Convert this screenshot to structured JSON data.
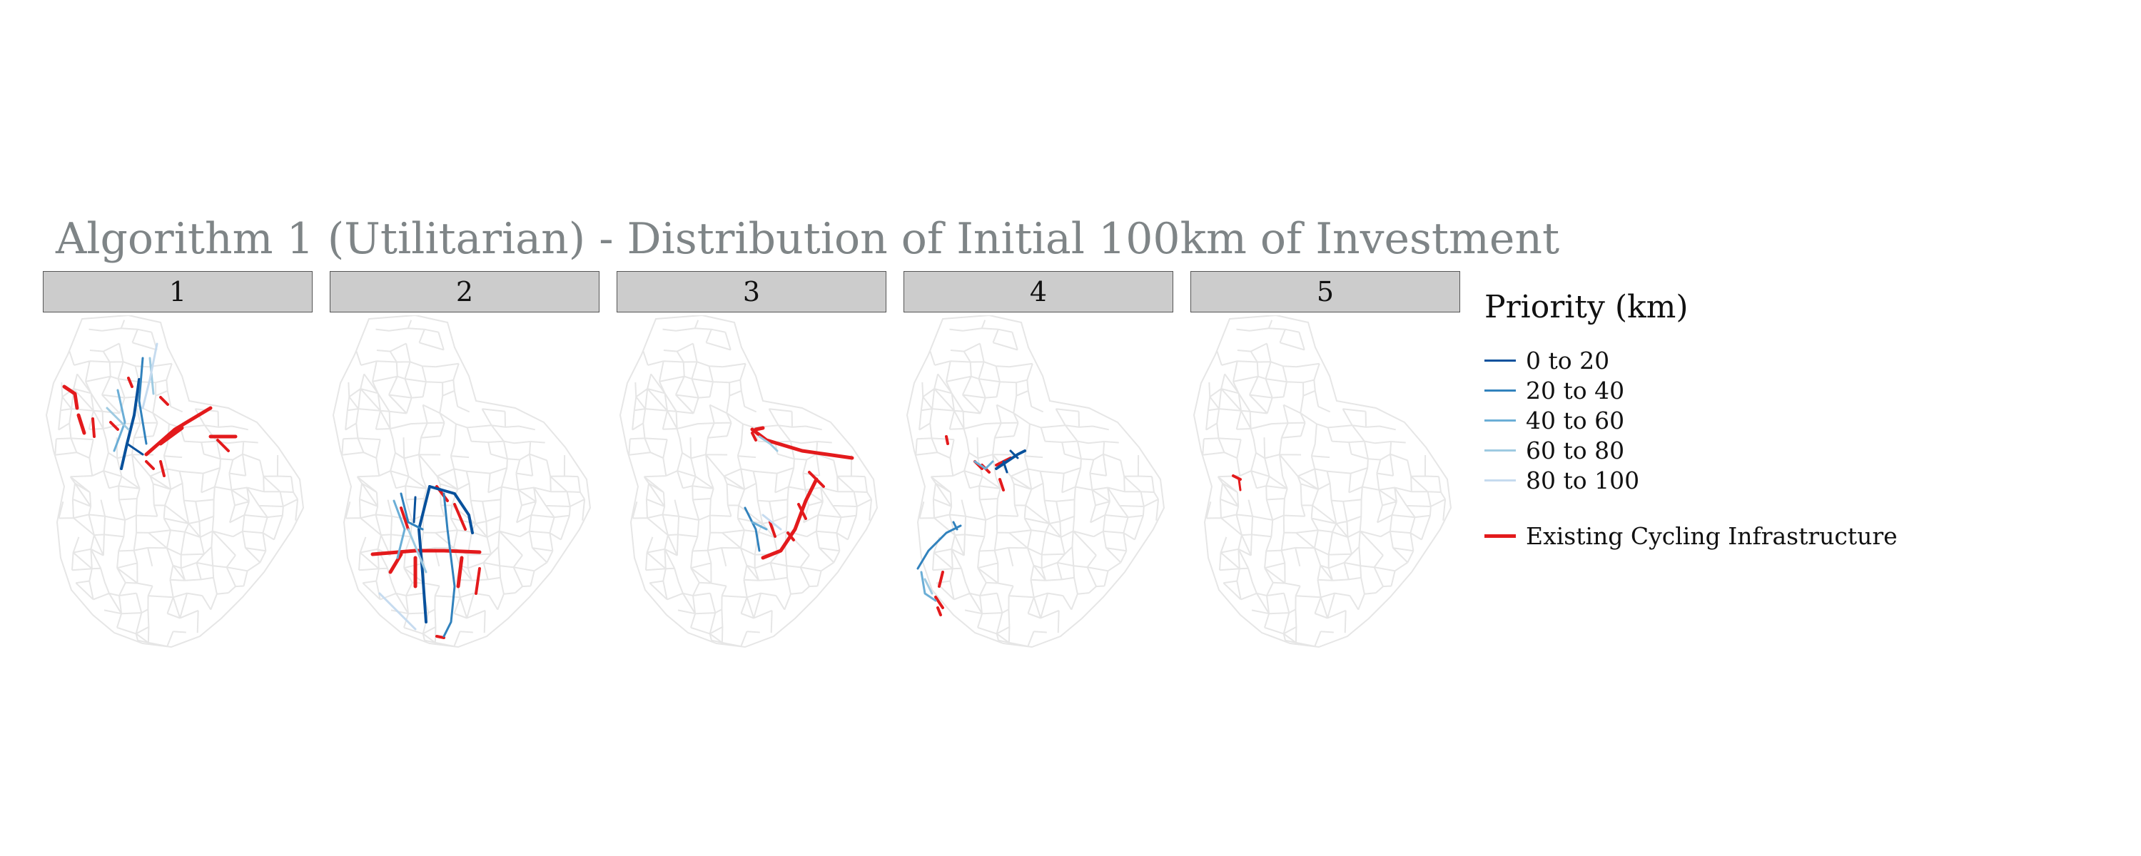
{
  "title": "Algorithm 1 (Utilitarian) - Distribution of Initial 100km of Investment",
  "panels": [
    {
      "label": "1",
      "highlight": "north-centre"
    },
    {
      "label": "2",
      "highlight": "south-west"
    },
    {
      "label": "3",
      "highlight": "centre"
    },
    {
      "label": "4",
      "highlight": "centre-west"
    },
    {
      "label": "5",
      "highlight": "none"
    }
  ],
  "legend": {
    "title": "Priority (km)",
    "items": [
      {
        "label": "0 to 20",
        "color": "#08519c"
      },
      {
        "label": "20 to 40",
        "color": "#3182bd"
      },
      {
        "label": "40 to 60",
        "color": "#6baed6"
      },
      {
        "label": "60 to 80",
        "color": "#9ecae1"
      },
      {
        "label": "80 to 100",
        "color": "#c6dbef"
      }
    ],
    "existing": {
      "label": "Existing Cycling Infrastructure",
      "color": "#e31a1c"
    }
  },
  "colors": {
    "background_network": "#e6e6e6",
    "strip": "#cccccc",
    "title": "#7f8587"
  }
}
